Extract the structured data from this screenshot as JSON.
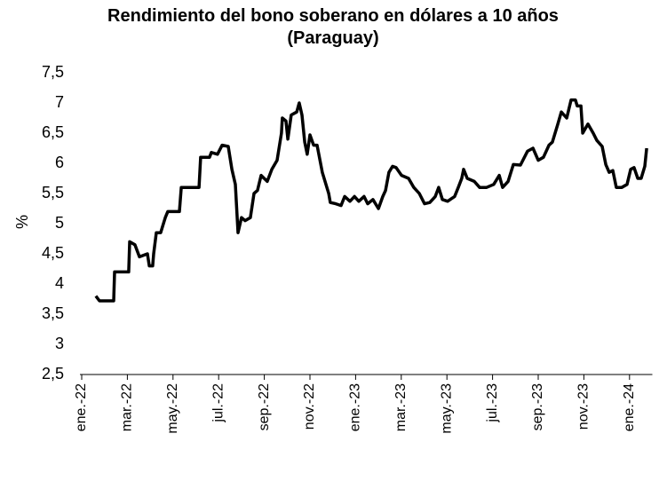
{
  "chart_data": {
    "type": "line",
    "title": "Rendimiento del bono soberano en dólares a 10 años (Paraguay)",
    "y_label": "%",
    "xlim": [
      0,
      25
    ],
    "xticks": [
      {
        "value": 0,
        "label": "ene.-22"
      },
      {
        "value": 2,
        "label": "mar.-22"
      },
      {
        "value": 4,
        "label": "may.-22"
      },
      {
        "value": 6,
        "label": "jul.-22"
      },
      {
        "value": 8,
        "label": "sep.-22"
      },
      {
        "value": 10,
        "label": "nov.-22"
      },
      {
        "value": 12,
        "label": "ene.-23"
      },
      {
        "value": 14,
        "label": "mar.-23"
      },
      {
        "value": 16,
        "label": "may.-23"
      },
      {
        "value": 18,
        "label": "jul.-23"
      },
      {
        "value": 20,
        "label": "sep.-23"
      },
      {
        "value": 22,
        "label": "nov.-23"
      },
      {
        "value": 24,
        "label": "ene.-24"
      }
    ],
    "ylim": [
      2.5,
      7.5
    ],
    "yticks": [
      {
        "value": 2.5,
        "label": "2,5"
      },
      3,
      {
        "value": 3.5,
        "label": "3,5"
      },
      4,
      {
        "value": 4.5,
        "label": "4,5"
      },
      5,
      {
        "value": 5.5,
        "label": "5,5"
      },
      6,
      {
        "value": 6.5,
        "label": "6,5"
      },
      7,
      {
        "value": 7.5,
        "label": "7,5"
      }
    ],
    "grid": false,
    "series": [
      {
        "color": "#000000",
        "x": [
          0.62,
          0.78,
          1.4,
          1.44,
          2.06,
          2.1,
          2.33,
          2.53,
          2.88,
          2.96,
          3.11,
          3.15,
          3.27,
          3.46,
          3.66,
          3.77,
          4.28,
          4.36,
          5.14,
          5.21,
          5.6,
          5.68,
          5.95,
          6.15,
          6.42,
          6.58,
          6.73,
          6.85,
          7.0,
          7.16,
          7.39,
          7.55,
          7.7,
          7.86,
          8.13,
          8.33,
          8.56,
          8.75,
          8.79,
          8.95,
          9.03,
          9.18,
          9.42,
          9.53,
          9.65,
          9.77,
          9.88,
          10.0,
          10.16,
          10.31,
          10.54,
          10.82,
          10.89,
          11.13,
          11.36,
          11.52,
          11.75,
          11.95,
          12.14,
          12.37,
          12.53,
          12.76,
          13.0,
          13.19,
          13.31,
          13.46,
          13.62,
          13.77,
          14.01,
          14.32,
          14.55,
          14.79,
          15.02,
          15.25,
          15.49,
          15.64,
          15.8,
          16.03,
          16.34,
          16.5,
          16.65,
          16.73,
          16.89,
          17.2,
          17.43,
          17.74,
          18.05,
          18.29,
          18.44,
          18.68,
          18.91,
          19.22,
          19.53,
          19.77,
          20.0,
          20.23,
          20.47,
          20.62,
          20.86,
          21.01,
          21.25,
          21.44,
          21.63,
          21.71,
          21.87,
          21.95,
          22.18,
          22.41,
          22.57,
          22.8,
          22.96,
          23.11,
          23.27,
          23.42,
          23.66,
          23.89,
          24.05,
          24.2,
          24.36,
          24.51,
          24.67,
          24.75
        ],
        "values": [
          3.8,
          3.72,
          3.72,
          4.2,
          4.2,
          4.7,
          4.65,
          4.45,
          4.5,
          4.3,
          4.3,
          4.5,
          4.85,
          4.85,
          5.1,
          5.2,
          5.2,
          5.6,
          5.6,
          6.1,
          6.1,
          6.18,
          6.15,
          6.3,
          6.28,
          5.9,
          5.65,
          4.85,
          5.1,
          5.05,
          5.1,
          5.5,
          5.55,
          5.8,
          5.7,
          5.9,
          6.05,
          6.5,
          6.75,
          6.7,
          6.4,
          6.8,
          6.85,
          7.0,
          6.8,
          6.35,
          6.15,
          6.47,
          6.3,
          6.3,
          5.85,
          5.5,
          5.35,
          5.33,
          5.3,
          5.45,
          5.37,
          5.45,
          5.37,
          5.45,
          5.33,
          5.4,
          5.25,
          5.45,
          5.55,
          5.85,
          5.95,
          5.93,
          5.8,
          5.75,
          5.6,
          5.5,
          5.33,
          5.35,
          5.45,
          5.6,
          5.4,
          5.37,
          5.45,
          5.6,
          5.75,
          5.9,
          5.75,
          5.7,
          5.6,
          5.6,
          5.65,
          5.8,
          5.6,
          5.7,
          5.98,
          5.97,
          6.2,
          6.25,
          6.05,
          6.1,
          6.3,
          6.35,
          6.65,
          6.85,
          6.75,
          7.05,
          7.05,
          6.95,
          6.95,
          6.5,
          6.65,
          6.5,
          6.38,
          6.28,
          5.98,
          5.85,
          5.88,
          5.6,
          5.6,
          5.65,
          5.9,
          5.93,
          5.75,
          5.75,
          5.95,
          6.25
        ]
      }
    ]
  }
}
